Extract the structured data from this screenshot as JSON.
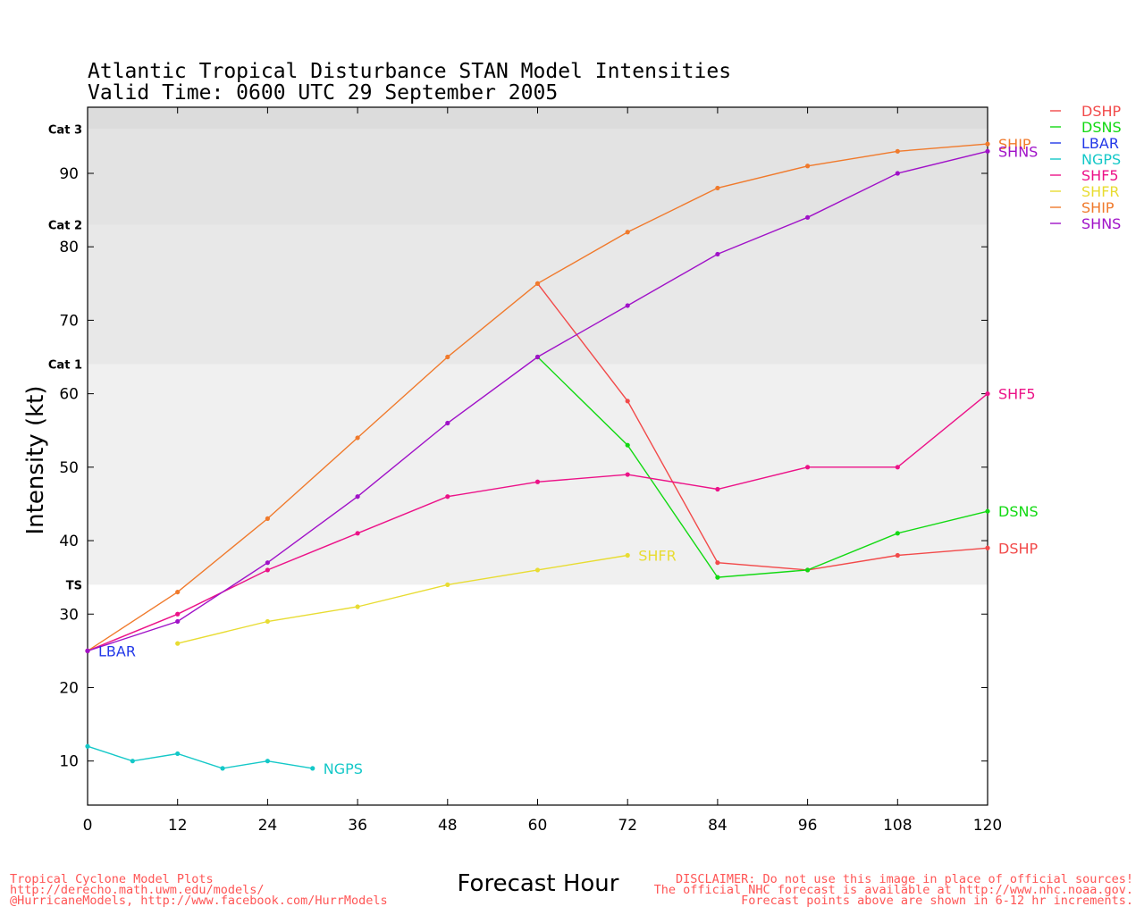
{
  "title_line1": "Atlantic Tropical Disturbance STAN Model Intensities",
  "title_line2": "Valid Time: 0600 UTC 29 September 2005",
  "chart_data": {
    "type": "line",
    "xlabel": "Forecast Hour",
    "ylabel": "Intensity (kt)",
    "xlim": [
      0,
      120
    ],
    "ylim": [
      4,
      99
    ],
    "xticks": [
      0,
      12,
      24,
      36,
      48,
      60,
      72,
      84,
      96,
      108,
      120
    ],
    "yticks": [
      10,
      20,
      30,
      40,
      50,
      60,
      70,
      80,
      90
    ],
    "categories_bands": [
      {
        "label": "TS",
        "from": 34,
        "to": 64,
        "color": "#f0f0f0"
      },
      {
        "label": "Cat 1",
        "from": 64,
        "to": 83,
        "color": "#e8e8e8"
      },
      {
        "label": "Cat 2",
        "from": 83,
        "to": 96,
        "color": "#e3e3e3"
      },
      {
        "label": "Cat 3",
        "from": 96,
        "to": 99,
        "color": "#dcdcdc"
      }
    ],
    "series": [
      {
        "name": "DSHP",
        "color": "#f24a4a",
        "x": [
          60,
          72,
          84,
          96,
          108,
          120
        ],
        "y": [
          75,
          59,
          37,
          36,
          38,
          39
        ]
      },
      {
        "name": "DSNS",
        "color": "#12d912",
        "x": [
          60,
          72,
          84,
          96,
          108,
          120
        ],
        "y": [
          65,
          53,
          35,
          36,
          41,
          44
        ]
      },
      {
        "name": "LBAR",
        "color": "#2238e8",
        "x": [
          0
        ],
        "y": [
          25
        ]
      },
      {
        "name": "NGPS",
        "color": "#14c8c8",
        "x": [
          0,
          6,
          12,
          18,
          24,
          30
        ],
        "y": [
          12,
          10,
          11,
          9,
          10,
          9
        ]
      },
      {
        "name": "SHF5",
        "color": "#ec1288",
        "x": [
          0,
          12,
          24,
          36,
          48,
          60,
          72,
          84,
          96,
          108,
          120
        ],
        "y": [
          25,
          30,
          36,
          41,
          46,
          48,
          49,
          47,
          50,
          50,
          60
        ]
      },
      {
        "name": "SHFR",
        "color": "#e8dc32",
        "x": [
          12,
          24,
          36,
          48,
          60,
          72
        ],
        "y": [
          26,
          29,
          31,
          34,
          36,
          38
        ]
      },
      {
        "name": "SHIP",
        "color": "#f07a2c",
        "x": [
          0,
          12,
          24,
          36,
          48,
          60,
          72,
          84,
          96,
          108,
          120
        ],
        "y": [
          25,
          33,
          43,
          54,
          65,
          75,
          82,
          88,
          91,
          93,
          94
        ]
      },
      {
        "name": "SHNS",
        "color": "#a012c8",
        "x": [
          0,
          12,
          24,
          36,
          48,
          60,
          72,
          84,
          96,
          108,
          120
        ],
        "y": [
          25,
          29,
          37,
          46,
          56,
          65,
          72,
          79,
          84,
          90,
          93
        ]
      }
    ]
  },
  "footer": {
    "left_line1": "Tropical Cyclone Model Plots",
    "left_line2": "http://derecho.math.uwm.edu/models/",
    "left_line3": "@HurricaneModels, http://www.facebook.com/HurrModels",
    "right_line1": "DISCLAIMER: Do not use this image in place of official sources!",
    "right_line2": "The official NHC forecast is available at http://www.nhc.noaa.gov.",
    "right_line3": "Forecast points above are shown in 6-12 hr increments."
  }
}
